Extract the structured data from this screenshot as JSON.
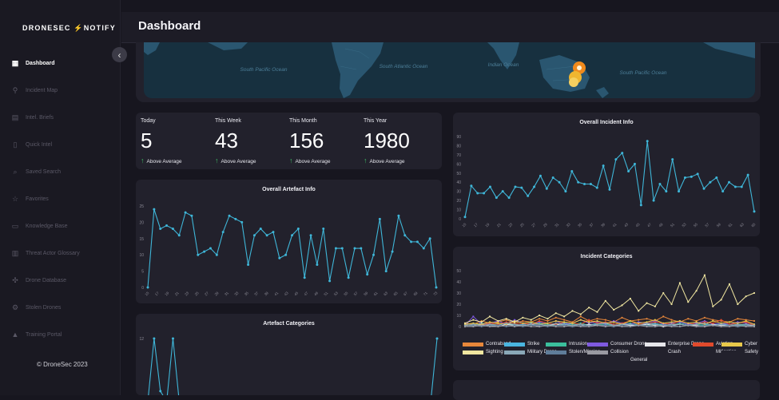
{
  "app": {
    "logo_left": "DRONESEC",
    "logo_right": "NOTIFY",
    "page_title": "Dashboard",
    "copyright": "© DroneSec 2023"
  },
  "sidebar": {
    "items": [
      {
        "label": "Dashboard",
        "icon": "dashboard-icon",
        "active": true
      },
      {
        "label": "Incident Map",
        "icon": "map-icon"
      },
      {
        "label": "Intel. Briefs",
        "icon": "briefs-icon"
      },
      {
        "label": "Quick Intel",
        "icon": "document-icon"
      },
      {
        "label": "Saved Search",
        "icon": "search-icon"
      },
      {
        "label": "Favorites",
        "icon": "star-icon"
      },
      {
        "label": "Knowledge Base",
        "icon": "book-icon"
      },
      {
        "label": "Threat Actor Glossary",
        "icon": "glossary-icon"
      },
      {
        "label": "Drone Database",
        "icon": "drone-icon"
      },
      {
        "label": "Stolen Drones",
        "icon": "stolen-icon"
      },
      {
        "label": "Training Portal",
        "icon": "training-icon"
      }
    ]
  },
  "map": {
    "labels": [
      "South Pacific Ocean",
      "South Atlantic Ocean",
      "Indian Ocean",
      "South Pacific Ocean"
    ],
    "marker_color": "#f08a1c"
  },
  "stats": [
    {
      "label": "Today",
      "value": "5",
      "note": "Above Average"
    },
    {
      "label": "This Week",
      "value": "43",
      "note": "Above Average"
    },
    {
      "label": "This Month",
      "value": "156",
      "note": "Above Average"
    },
    {
      "label": "This Year",
      "value": "1980",
      "note": "Above Average"
    }
  ],
  "colors": {
    "accent": "#3fb6d8",
    "up": "#3fbf66",
    "card": "#22212c"
  },
  "chart_data": [
    {
      "id": "artefact_info",
      "type": "line",
      "title": "Overall Artefact Info",
      "ylim": [
        0,
        25
      ],
      "yticks": [
        0,
        5,
        10,
        15,
        20,
        25
      ],
      "values": [
        0,
        24,
        18,
        19,
        18,
        16,
        23,
        22,
        10,
        11,
        12,
        10,
        17,
        22,
        21,
        20,
        7,
        16,
        18,
        16,
        17,
        9,
        10,
        16,
        18,
        3,
        16,
        7,
        18,
        2,
        12,
        12,
        3,
        12,
        12,
        4,
        10,
        21,
        5,
        11,
        22,
        16,
        14,
        14,
        12,
        15,
        0
      ],
      "xticks": [
        "15",
        "17",
        "19",
        "21",
        "23",
        "25",
        "27",
        "29",
        "31",
        "33",
        "35",
        "37",
        "39",
        "41",
        "43",
        "45",
        "47",
        "49",
        "51",
        "53",
        "55",
        "57",
        "59",
        "61",
        "63",
        "65",
        "67",
        "69",
        "71",
        "73"
      ]
    },
    {
      "id": "incident_info",
      "type": "line",
      "title": "Overall Incident Info",
      "ylim": [
        0,
        90
      ],
      "yticks": [
        0,
        10,
        20,
        30,
        40,
        50,
        60,
        70,
        80,
        90
      ],
      "values": [
        2,
        36,
        28,
        28,
        35,
        23,
        30,
        23,
        35,
        34,
        25,
        35,
        47,
        33,
        45,
        40,
        30,
        52,
        40,
        38,
        38,
        34,
        58,
        32,
        65,
        72,
        52,
        60,
        15,
        85,
        20,
        38,
        30,
        65,
        30,
        45,
        46,
        49,
        33,
        40,
        45,
        30,
        40,
        35,
        35,
        48,
        8
      ],
      "xticks": [
        "15",
        "17",
        "19",
        "21",
        "23",
        "25",
        "27",
        "29",
        "31",
        "33",
        "35",
        "37",
        "39",
        "41",
        "43",
        "45",
        "47",
        "49",
        "51",
        "53",
        "55",
        "57",
        "59",
        "61",
        "63",
        "65"
      ]
    },
    {
      "id": "incident_categories",
      "type": "line",
      "title": "Incident Categories",
      "ylim": [
        0,
        50
      ],
      "yticks": [
        0,
        10,
        20,
        30,
        40,
        50
      ],
      "series": [
        {
          "name": "Contraband",
          "color": "#e8873a",
          "values": [
            3,
            2,
            5,
            3,
            4,
            6,
            3,
            5,
            4,
            7,
            5,
            8,
            6,
            4,
            9,
            5,
            7,
            6,
            4,
            8,
            5,
            6,
            7,
            5,
            9,
            6,
            4,
            7,
            5,
            8,
            6,
            5,
            4,
            7,
            6,
            5
          ]
        },
        {
          "name": "Strike",
          "color": "#4ab5e0",
          "values": [
            2,
            1,
            3,
            2,
            2,
            3,
            1,
            2,
            3,
            2,
            1,
            2,
            3,
            2,
            2,
            1,
            3,
            2,
            2,
            3,
            1,
            2,
            2,
            3,
            1,
            2,
            2,
            1,
            3,
            2,
            1,
            2,
            2,
            1,
            2,
            1
          ]
        },
        {
          "name": "Intrusion",
          "color": "#3bbf9c",
          "values": [
            1,
            2,
            2,
            1,
            3,
            2,
            2,
            1,
            2,
            3,
            2,
            1,
            2,
            2,
            3,
            1,
            2,
            2,
            1,
            2,
            3,
            2,
            1,
            2,
            2,
            1,
            3,
            2,
            2,
            1,
            2,
            2,
            1,
            2,
            1,
            2
          ]
        },
        {
          "name": "Consumer Drone",
          "color": "#7f5ae0",
          "values": [
            1,
            9,
            2,
            3,
            5,
            2,
            6,
            3,
            2,
            4,
            3,
            5,
            2,
            3,
            6,
            3,
            4,
            2,
            5,
            3,
            2,
            4,
            3,
            5,
            2,
            3,
            4,
            2,
            3,
            5,
            2,
            3,
            2,
            4,
            3,
            2
          ]
        },
        {
          "name": "Enterprise Drone",
          "color": "#e6e6ea",
          "values": [
            0,
            1,
            2,
            1,
            0,
            2,
            1,
            1,
            2,
            0,
            1,
            2,
            1,
            0,
            1,
            2,
            1,
            1,
            0,
            2,
            1,
            1,
            2,
            1,
            0,
            1,
            2,
            1,
            1,
            0,
            2,
            1,
            1,
            0,
            1,
            1
          ]
        },
        {
          "name": "Aviation",
          "color": "#e04a2c",
          "values": [
            1,
            2,
            1,
            3,
            2,
            4,
            2,
            3,
            2,
            5,
            3,
            2,
            4,
            3,
            2,
            6,
            3,
            4,
            2,
            3,
            5,
            2,
            3,
            4,
            3,
            2,
            5,
            3,
            2,
            4,
            3,
            6,
            2,
            3,
            4,
            1
          ]
        },
        {
          "name": "Cyber",
          "color": "#e8c84a",
          "values": [
            2,
            3,
            2,
            4,
            3,
            2,
            5,
            3,
            4,
            2,
            3,
            5,
            4,
            3,
            6,
            4,
            5,
            3,
            4,
            2,
            5,
            3,
            4,
            6,
            3,
            4,
            5,
            3,
            4,
            2,
            5,
            3,
            4,
            3,
            5,
            2
          ]
        },
        {
          "name": "Sighting",
          "color": "#f0e6a0",
          "values": [
            3,
            6,
            4,
            9,
            5,
            7,
            4,
            8,
            6,
            10,
            7,
            12,
            9,
            14,
            11,
            17,
            13,
            23,
            15,
            19,
            25,
            14,
            21,
            18,
            30,
            20,
            39,
            22,
            32,
            46,
            18,
            24,
            38,
            20,
            27,
            30
          ]
        },
        {
          "name": "Military Drone",
          "color": "#8aa8b8",
          "values": [
            1,
            2,
            1,
            2,
            1,
            3,
            2,
            1,
            2,
            2,
            1,
            3,
            2,
            1,
            2,
            1,
            2,
            3,
            1,
            2,
            2,
            1,
            3,
            2,
            1,
            2,
            2,
            1,
            2,
            3,
            1,
            2,
            1,
            2,
            2,
            1
          ]
        },
        {
          "name": "Stolen/Missing",
          "color": "#5f7d9a",
          "values": [
            0,
            1,
            0,
            1,
            1,
            0,
            1,
            0,
            1,
            1,
            0,
            1,
            1,
            0,
            1,
            0,
            1,
            1,
            0,
            1,
            0,
            1,
            1,
            0,
            1,
            1,
            0,
            1,
            0,
            1,
            1,
            0,
            1,
            0,
            1,
            0
          ]
        },
        {
          "name": "Collision",
          "color": "#9a9aa2",
          "values": [
            0,
            0,
            1,
            0,
            0,
            1,
            0,
            1,
            0,
            0,
            1,
            0,
            0,
            1,
            0,
            0,
            1,
            0,
            1,
            0,
            0,
            1,
            0,
            0,
            1,
            0,
            0,
            1,
            0,
            0,
            1,
            0,
            0,
            1,
            0,
            0
          ]
        },
        {
          "name": "Crash",
          "color": "#22212c",
          "values": []
        },
        {
          "name": "Mitigation",
          "color": "#22212c",
          "values": []
        },
        {
          "name": "Safety",
          "color": "#22212c",
          "values": []
        },
        {
          "name": "General",
          "color": "#22212c",
          "values": []
        }
      ]
    },
    {
      "id": "artefact_categories",
      "type": "line",
      "title": "Artefact Categories",
      "ylim": [
        0,
        12
      ],
      "yticks": [
        12
      ],
      "values": [
        0,
        12,
        2,
        0,
        12,
        0,
        0,
        0,
        0,
        0,
        0,
        0,
        0,
        0,
        0,
        0,
        0,
        0,
        0,
        0,
        0,
        0,
        0,
        0,
        0,
        0,
        0,
        0,
        0,
        0,
        0,
        0,
        0,
        0,
        0,
        0,
        0,
        0,
        0,
        0,
        0,
        0,
        0,
        0,
        0,
        0,
        12
      ]
    }
  ]
}
